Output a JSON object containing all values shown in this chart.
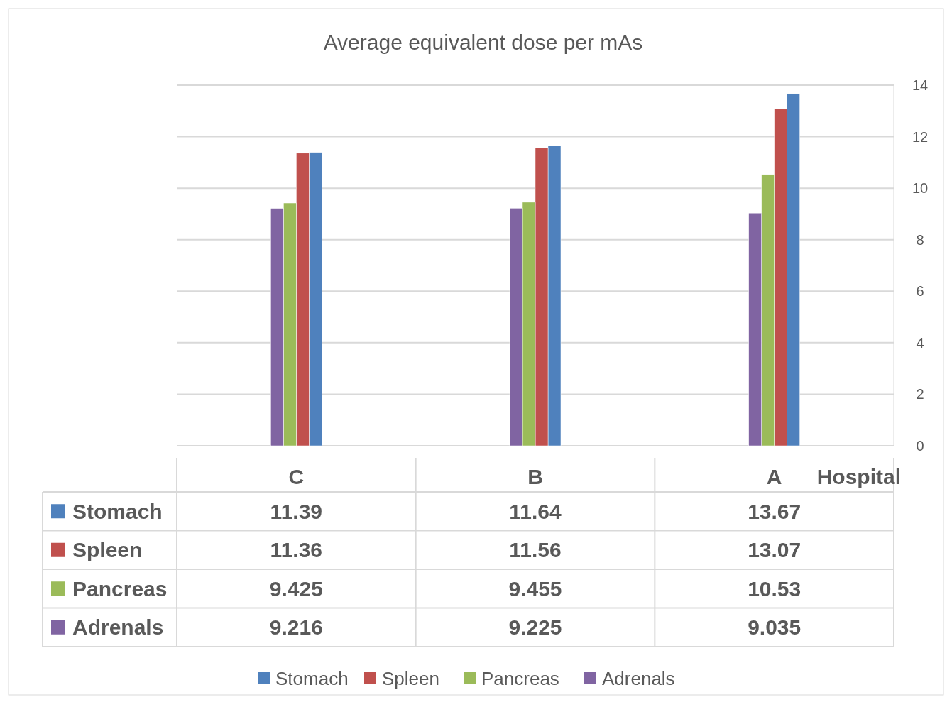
{
  "chart_data": {
    "type": "bar",
    "title": "Average equivalent dose per mAs",
    "xlabel": "Hospital",
    "categories": [
      "C",
      "B",
      "A"
    ],
    "series": [
      {
        "name": "Stomach",
        "color": "#4f81bd",
        "values": [
          11.39,
          11.64,
          13.67
        ]
      },
      {
        "name": "Spleen",
        "color": "#c0504d",
        "values": [
          11.36,
          11.56,
          13.07
        ]
      },
      {
        "name": "Pancreas",
        "color": "#9bbb59",
        "values": [
          9.425,
          9.455,
          10.53
        ]
      },
      {
        "name": "Adrenals",
        "color": "#8064a2",
        "values": [
          9.216,
          9.225,
          9.035
        ]
      }
    ],
    "ylim": [
      0,
      14
    ],
    "yticks": [
      0,
      2,
      4,
      6,
      8,
      10,
      12,
      14
    ],
    "grid": "y",
    "legend": "bottom",
    "data_labels": true
  }
}
